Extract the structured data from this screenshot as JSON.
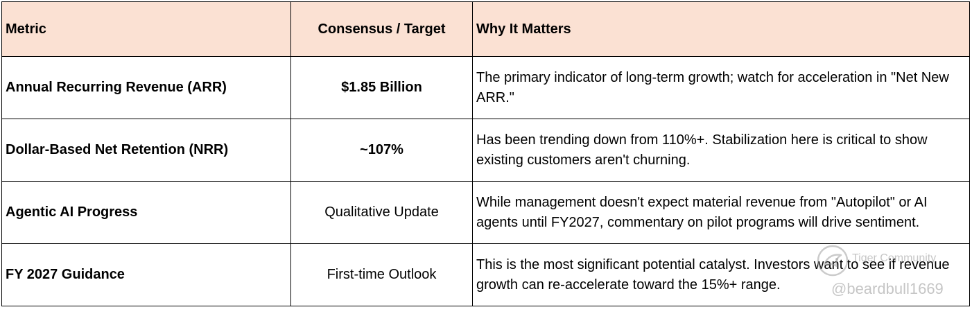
{
  "table": {
    "headers": [
      "Metric",
      "Consensus / Target",
      "Why It Matters"
    ],
    "rows": [
      {
        "metric": "Annual Recurring Revenue (ARR)",
        "target": "$1.85 Billion",
        "why": "The primary indicator of long-term growth; watch for acceleration in \"Net New ARR.\""
      },
      {
        "metric": "Dollar-Based Net Retention (NRR)",
        "target": "~107%",
        "why": "Has been trending down from 110%+. Stabilization here is critical to show existing customers aren't churning."
      },
      {
        "metric": "Agentic AI Progress",
        "target": "Qualitative Update",
        "why": "While management doesn't expect material revenue from \"Autopilot\" or AI agents until FY2027, commentary on pilot programs will drive sentiment."
      },
      {
        "metric": "FY 2027 Guidance",
        "target": "First-time Outlook",
        "why": "This is the most significant potential catalyst. Investors want to see if revenue growth can re-accelerate toward the 15%+ range."
      }
    ]
  },
  "watermark": {
    "brand": "Tiger Community",
    "user": "@beardbull1669",
    "logo_icon": "tiger-community-logo-icon"
  }
}
